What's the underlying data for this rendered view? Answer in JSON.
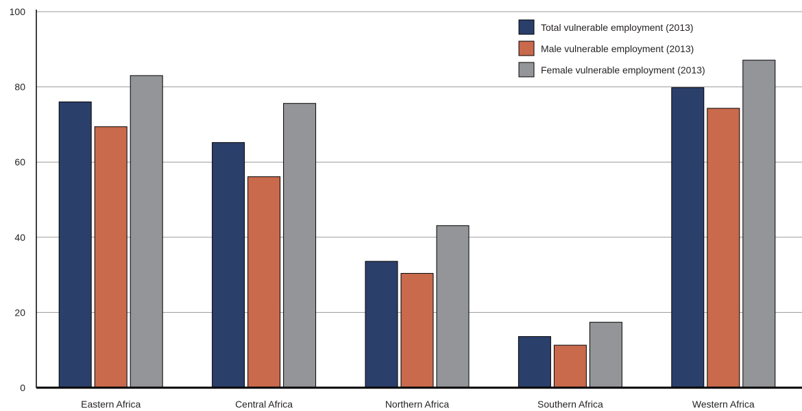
{
  "chart_data": {
    "type": "bar",
    "categories": [
      "Eastern Africa",
      "Central Africa",
      "Northern Africa",
      "Southern Africa",
      "Western Africa"
    ],
    "series": [
      {
        "name": "Total vulnerable employment (2013)",
        "color": "#2b3f6b",
        "values": [
          76,
          65.2,
          33.6,
          13.6,
          79.8
        ]
      },
      {
        "name": "Male vulnerable employment (2013)",
        "color": "#c96a4d",
        "values": [
          69.4,
          56.1,
          30.4,
          11.3,
          74.3
        ]
      },
      {
        "name": "Female vulnerable employment (2013)",
        "color": "#939598",
        "values": [
          83,
          75.6,
          43.1,
          17.4,
          87.1
        ]
      }
    ],
    "title": "",
    "xlabel": "",
    "ylabel": "",
    "ylim": [
      0,
      100
    ],
    "yticks": [
      0,
      20,
      40,
      60,
      80,
      100
    ],
    "grid": true,
    "legend_position": "top-right"
  }
}
